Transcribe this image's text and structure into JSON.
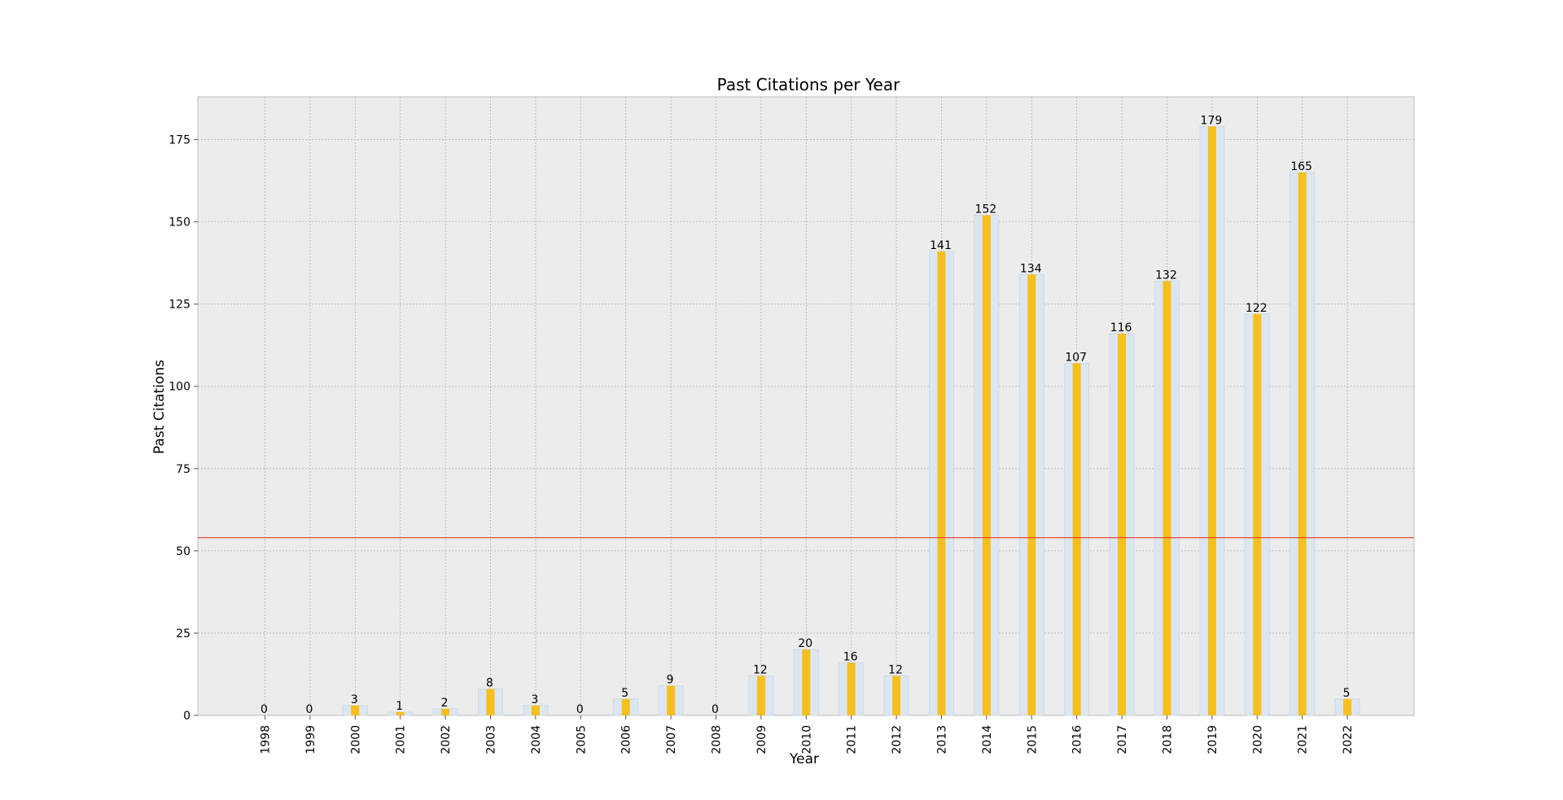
{
  "chart_data": {
    "type": "bar",
    "title": "Past Citations per Year",
    "xlabel": "Year",
    "ylabel": "Past Citations",
    "categories": [
      "1998",
      "1999",
      "2000",
      "2001",
      "2002",
      "2003",
      "2004",
      "2005",
      "2006",
      "2007",
      "2008",
      "2009",
      "2010",
      "2011",
      "2012",
      "2013",
      "2014",
      "2015",
      "2016",
      "2017",
      "2018",
      "2019",
      "2020",
      "2021",
      "2022"
    ],
    "series": [
      {
        "values": [
          0,
          0,
          3,
          1,
          2,
          8,
          3,
          0,
          5,
          9,
          0,
          12,
          20,
          16,
          12,
          141,
          152,
          134,
          107,
          116,
          132,
          179,
          122,
          165,
          5
        ],
        "color": "#f5bf1e",
        "background_color": "#dce6f0"
      }
    ],
    "data_labels": [
      "0",
      "0",
      "3",
      "1",
      "2",
      "8",
      "3",
      "0",
      "5",
      "9",
      "0",
      "12",
      "20",
      "16",
      "12",
      "141",
      "152",
      "134",
      "107",
      "116",
      "132",
      "179",
      "122",
      "165",
      "5"
    ],
    "yticks": [
      0,
      25,
      50,
      75,
      100,
      125,
      150,
      175
    ],
    "ylim": [
      0,
      188
    ],
    "reference_line": {
      "value": 54,
      "color": "#e8392a"
    },
    "grid": true,
    "background": "#ececec"
  }
}
